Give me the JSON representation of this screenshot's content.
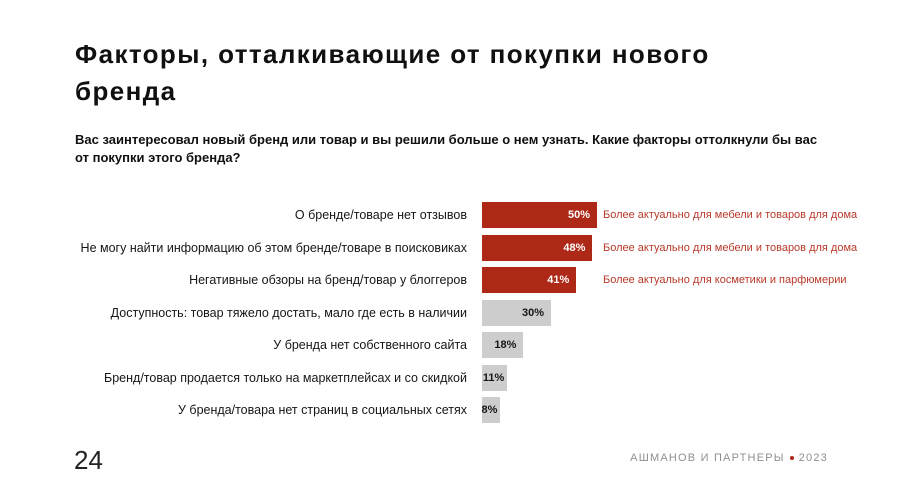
{
  "slide": {
    "title": "Факторы, отталкивающие от покупки нового бренда",
    "subtitle": "Вас заинтересовал новый бренд или товар и вы решили больше о нем узнать. Какие факторы оттолкнули бы вас от покупки этого бренда?",
    "page_number": "24",
    "footer": {
      "brand": "АШМАНОВ И ПАРТНЕРЫ",
      "year": "2023"
    }
  },
  "colors": {
    "accent_red": "#ae2817",
    "bar_gray": "#cdcdcd",
    "annotation_red": "#b9392a",
    "value_on_red": "#ffffff",
    "value_on_gray": "#161616",
    "footer_gray": "#8f8f8f",
    "text_black": "#101010"
  },
  "chart_data": {
    "type": "bar",
    "orientation": "horizontal",
    "title": "Факторы, отталкивающие от покупки нового бренда",
    "xlabel": "",
    "ylabel": "",
    "xlim": [
      0,
      50
    ],
    "grid": false,
    "legend": false,
    "value_suffix": "%",
    "categories": [
      "О бренде/товаре нет отзывов",
      "Не могу найти информацию об этом бренде/товаре в поисковиках",
      "Негативные обзоры на бренд/товар у блоггеров",
      "Доступность: товар тяжело достать, мало где есть в наличии",
      "У бренда нет собственного сайта",
      "Бренд/товар продается только на маркетплейсах и со скидкой",
      "У бренда/товара нет страниц в социальных сетях"
    ],
    "values": [
      50,
      48,
      41,
      30,
      18,
      11,
      8
    ],
    "value_labels": [
      "50%",
      "48%",
      "41%",
      "30%",
      "18%",
      "11%",
      "8%"
    ],
    "highlighted": [
      true,
      true,
      true,
      false,
      false,
      false,
      false
    ],
    "annotations": [
      "Более актуально для мебели и товаров для дома",
      "Более актуально для мебели и товаров для дома",
      "Более актуально для косметики и парфюмерии",
      "",
      "",
      "",
      ""
    ],
    "bar_color_highlight": "#ae2817",
    "bar_color_default": "#cdcdcd",
    "annotation_color": "#b9392a"
  }
}
